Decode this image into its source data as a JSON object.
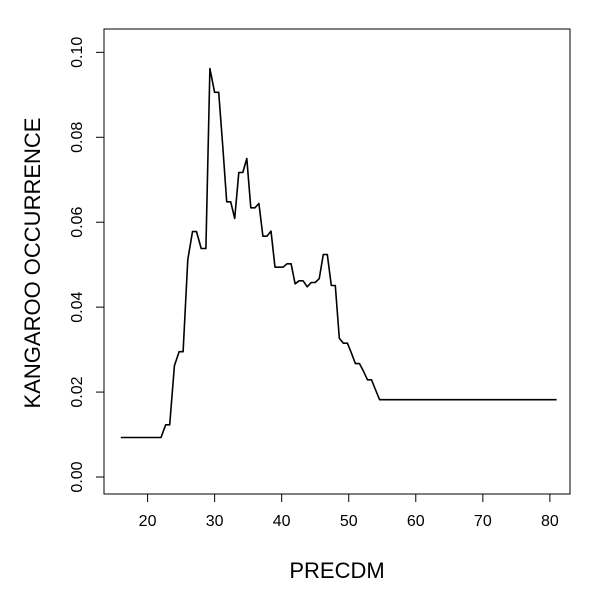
{
  "chart_data": {
    "type": "line",
    "xlabel": "PRECDM",
    "ylabel": "KANGAROO OCCURRENCE",
    "xlim": [
      13.5,
      83
    ],
    "ylim": [
      -0.004,
      0.1055
    ],
    "x_ticks": [
      20,
      30,
      40,
      50,
      60,
      70,
      80
    ],
    "x_tick_labels": [
      "20",
      "30",
      "40",
      "50",
      "60",
      "70",
      "80"
    ],
    "y_ticks": [
      0.0,
      0.02,
      0.04,
      0.06,
      0.08,
      0.1
    ],
    "y_tick_labels": [
      "0.00",
      "0.02",
      "0.04",
      "0.06",
      "0.08",
      "0.10"
    ],
    "grid": false,
    "legend": "none",
    "line_color": "#000000",
    "series": [
      {
        "x": [
          16,
          17,
          18,
          19,
          20,
          21,
          22,
          22.7,
          23.3,
          24,
          24.7,
          25.3,
          26,
          26.7,
          27.3,
          28,
          28.7,
          29.3,
          30,
          30.6,
          31.2,
          31.8,
          32.4,
          33,
          33.6,
          34.2,
          34.8,
          35.4,
          36,
          36.6,
          37.2,
          37.8,
          38.4,
          39,
          39.6,
          40.2,
          40.8,
          41.4,
          42,
          42.6,
          43.2,
          43.8,
          44.4,
          45,
          45.6,
          46.2,
          46.8,
          47.4,
          48,
          48.6,
          49.2,
          49.8,
          50.4,
          51,
          51.6,
          52.2,
          52.8,
          53.4,
          54,
          54.6,
          55.2,
          55.8,
          56.4,
          57,
          58,
          60,
          65,
          70,
          75,
          81
        ],
        "y": [
          0.0093,
          0.0093,
          0.0093,
          0.0093,
          0.0093,
          0.0093,
          0.0093,
          0.0123,
          0.0123,
          0.0262,
          0.0295,
          0.0295,
          0.0512,
          0.0578,
          0.0578,
          0.0538,
          0.0538,
          0.0962,
          0.0906,
          0.0906,
          0.0781,
          0.0648,
          0.0648,
          0.0609,
          0.0717,
          0.0717,
          0.075,
          0.0634,
          0.0634,
          0.0644,
          0.0567,
          0.0567,
          0.0579,
          0.0494,
          0.0494,
          0.0494,
          0.0502,
          0.0502,
          0.0455,
          0.0462,
          0.0462,
          0.0448,
          0.0458,
          0.0458,
          0.0467,
          0.0524,
          0.0524,
          0.0451,
          0.0451,
          0.0327,
          0.0315,
          0.0315,
          0.0292,
          0.0267,
          0.0267,
          0.0249,
          0.0229,
          0.0229,
          0.0205,
          0.0182,
          0.0182,
          0.0182,
          0.0182,
          0.0182,
          0.0182,
          0.0182,
          0.0182,
          0.0182,
          0.0182,
          0.0182
        ]
      }
    ]
  }
}
